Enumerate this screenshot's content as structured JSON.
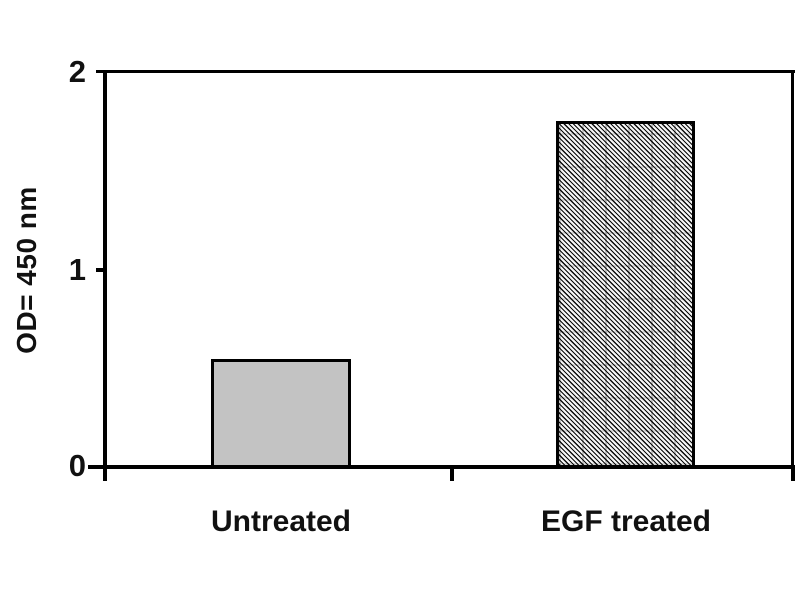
{
  "chart_data": {
    "type": "bar",
    "title": "",
    "xlabel": "",
    "ylabel": "OD= 450 nm",
    "categories": [
      "Untreated",
      "EGF treated"
    ],
    "values": [
      0.55,
      1.75
    ],
    "ylim": [
      0,
      2
    ],
    "yticks": [
      "0",
      "1",
      "2"
    ],
    "grid": false,
    "legend": "none",
    "frame": "full-box",
    "bar_styles": [
      {
        "category": "Untreated",
        "fill": "solid",
        "fill_color": "#c3c3c3",
        "border_color": "#000000"
      },
      {
        "category": "EGF treated",
        "fill": "diagonal-hatch",
        "fill_color": "#000000",
        "border_color": "#000000"
      }
    ],
    "text_color": "#111111",
    "axis_color": "#000000"
  }
}
